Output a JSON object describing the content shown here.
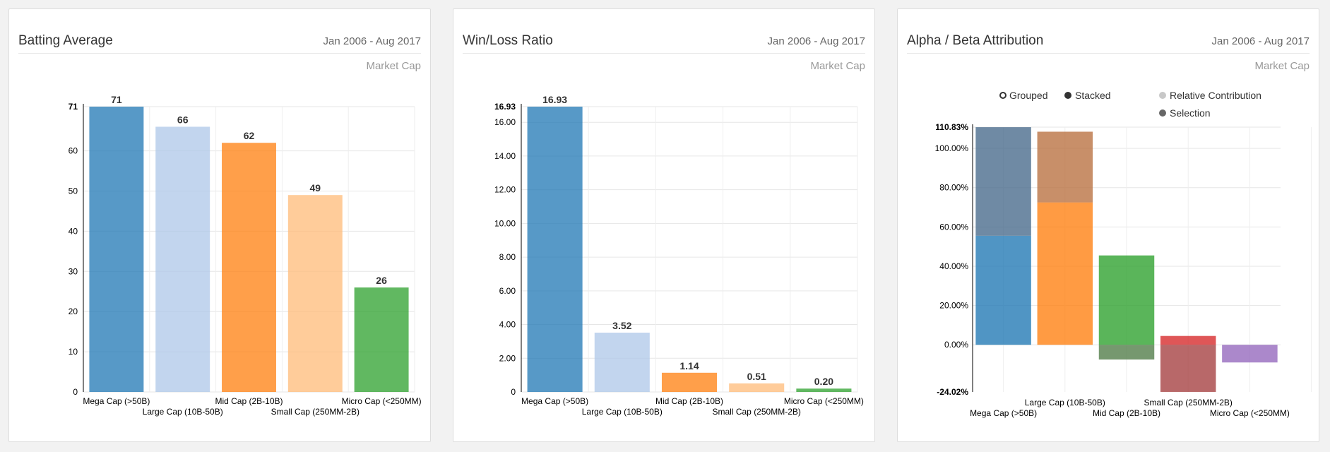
{
  "panels": [
    {
      "title": "Batting Average",
      "range": "Jan 2006 - Aug 2017",
      "subtitle": "Market Cap"
    },
    {
      "title": "Win/Loss Ratio",
      "range": "Jan 2006 - Aug 2017",
      "subtitle": "Market Cap"
    },
    {
      "title": "Alpha / Beta Attribution",
      "range": "Jan 2006 - Aug 2017",
      "subtitle": "Market Cap"
    }
  ],
  "legend": {
    "grouped": "Grouped",
    "stacked": "Stacked",
    "relative": "Relative Contribution",
    "selection": "Selection"
  },
  "chart_data": [
    {
      "type": "bar",
      "title": "Batting Average",
      "categories": [
        "Mega Cap (>50B)",
        "Large Cap (10B-50B)",
        "Mid Cap (2B-10B)",
        "Small Cap (250MM-2B)",
        "Micro Cap (<250MM)"
      ],
      "values": [
        71,
        66,
        62,
        49,
        26
      ],
      "data_labels": [
        "71",
        "66",
        "62",
        "49",
        "26"
      ],
      "colors": [
        "#1f77b4",
        "#aec7e8",
        "#ff7f0e",
        "#ffbb78",
        "#2ca02c"
      ],
      "yticks": [
        "0",
        "10",
        "20",
        "30",
        "40",
        "50",
        "60"
      ],
      "ymax_label": "71",
      "ylim": [
        0,
        71
      ],
      "grid": true
    },
    {
      "type": "bar",
      "title": "Win/Loss Ratio",
      "categories": [
        "Mega Cap (>50B)",
        "Large Cap (10B-50B)",
        "Mid Cap (2B-10B)",
        "Small Cap (250MM-2B)",
        "Micro Cap (<250MM)"
      ],
      "values": [
        16.93,
        3.52,
        1.14,
        0.51,
        0.2
      ],
      "data_labels": [
        "16.93",
        "3.52",
        "1.14",
        "0.51",
        "0.20"
      ],
      "colors": [
        "#1f77b4",
        "#aec7e8",
        "#ff7f0e",
        "#ffbb78",
        "#2ca02c"
      ],
      "yticks": [
        "0",
        "2.00",
        "4.00",
        "6.00",
        "8.00",
        "10.00",
        "12.00",
        "14.00",
        "16.00"
      ],
      "ymax_label": "16.93",
      "ylim": [
        0,
        16.93
      ],
      "grid": true
    },
    {
      "type": "bar",
      "title": "Alpha / Beta Attribution",
      "stacked": true,
      "categories": [
        "Mega Cap (>50B)",
        "Large Cap (10B-50B)",
        "Mid Cap (2B-10B)",
        "Small Cap (250MM-2B)",
        "Micro Cap (<250MM)"
      ],
      "series": [
        {
          "name": "Relative Contribution",
          "values": [
            55.5,
            72.5,
            45.5,
            4.5,
            -9.0
          ]
        },
        {
          "name": "Selection",
          "values": [
            55.3,
            36.0,
            -7.5,
            -24.0,
            0
          ]
        }
      ],
      "colors": [
        "#1f77b4",
        "#ff7f0e",
        "#2ca02c",
        "#d62728",
        "#9467bd"
      ],
      "selection_colors": [
        "#46698a",
        "#b9703f",
        "#4f7b47",
        "#a43d3f",
        "#9467bd"
      ],
      "yticks": [
        "0.00%",
        "20.00%",
        "40.00%",
        "60.00%",
        "80.00%",
        "100.00%"
      ],
      "ymax_label": "110.83%",
      "ymin_label": "-24.02%",
      "ylim": [
        -24.02,
        110.83
      ],
      "grid": true,
      "legend_position": "top"
    }
  ]
}
